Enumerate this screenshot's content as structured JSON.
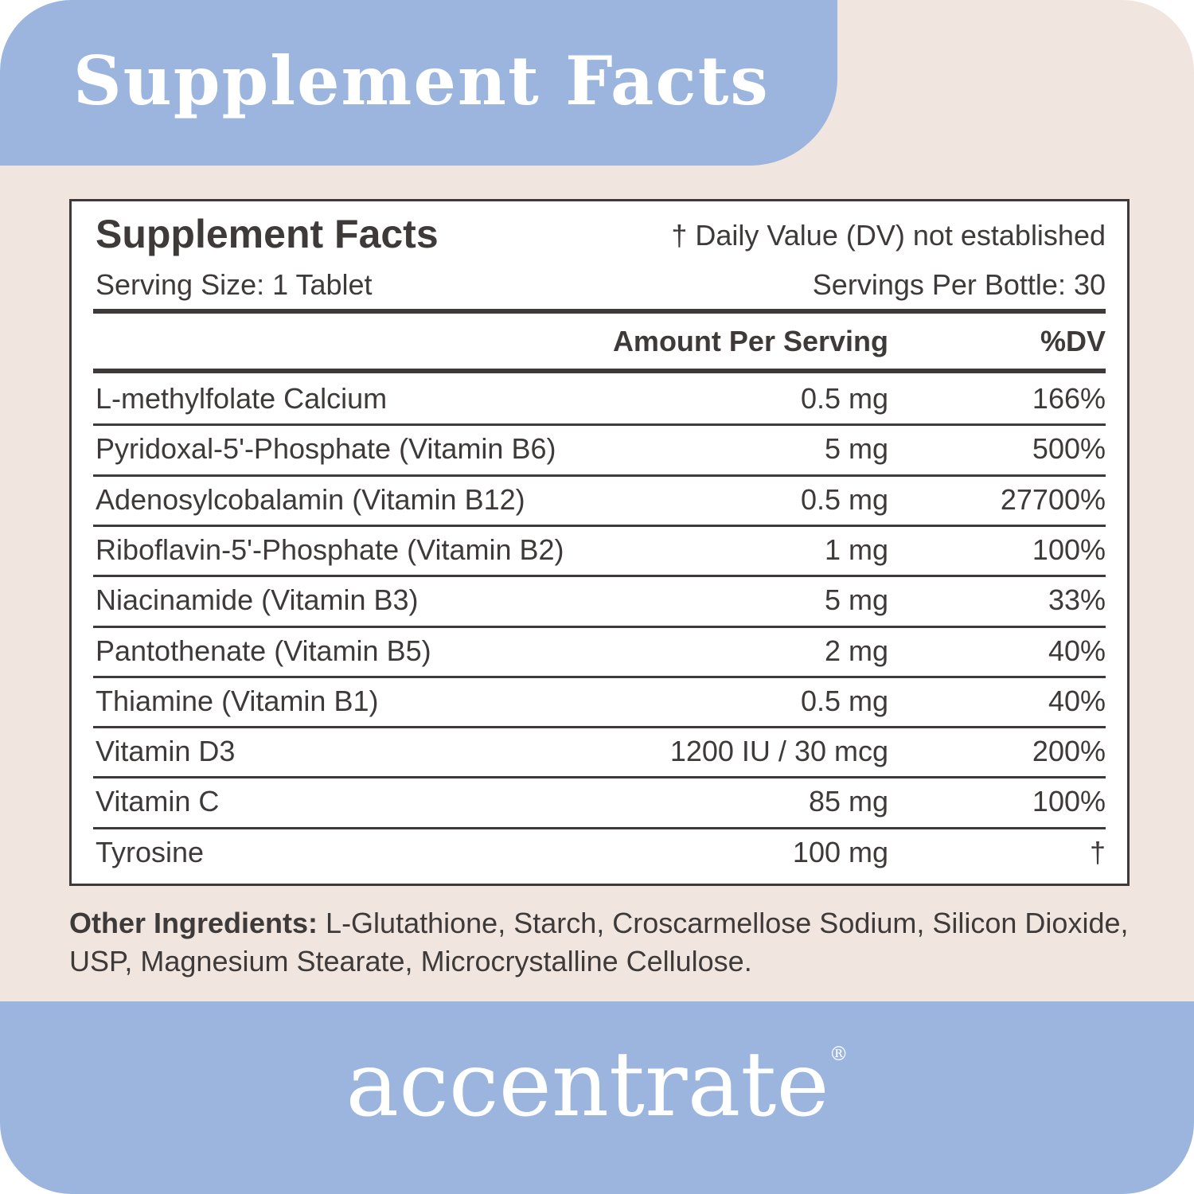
{
  "header": {
    "title": "Supplement Facts"
  },
  "panel": {
    "title": "Supplement Facts",
    "note": "† Daily Value (DV) not established",
    "serving_size": "Serving Size: 1 Tablet",
    "servings_per": "Servings Per Bottle: 30",
    "columns": [
      "Amount Per Serving",
      "%DV"
    ],
    "rows": [
      [
        "L-methylfolate Calcium",
        "0.5 mg",
        "166%"
      ],
      [
        "Pyridoxal-5'-Phosphate (Vitamin B6)",
        "5 mg",
        "500%"
      ],
      [
        "Adenosylcobalamin (Vitamin B12)",
        "0.5 mg",
        "27700%"
      ],
      [
        "Riboflavin-5'-Phosphate (Vitamin B2)",
        "1 mg",
        "100%"
      ],
      [
        "Niacinamide (Vitamin B3)",
        "5 mg",
        "33%"
      ],
      [
        "Pantothenate (Vitamin B5)",
        "2 mg",
        "40%"
      ],
      [
        "Thiamine (Vitamin B1)",
        "0.5 mg",
        "40%"
      ],
      [
        "Vitamin D3",
        "1200 IU / 30 mcg",
        "200%"
      ],
      [
        "Vitamin C",
        "85 mg",
        "100%"
      ],
      [
        "Tyrosine",
        "100 mg",
        "†"
      ]
    ]
  },
  "other_ingredients": {
    "label": "Other Ingredients:",
    "text": "L-Glutathione, Starch, Croscarmellose Sodium, Silicon Dioxide, USP, Magnesium Stearate, Microcrystalline Cellulose."
  },
  "brand": {
    "name": "accentrate",
    "mark": "®"
  }
}
